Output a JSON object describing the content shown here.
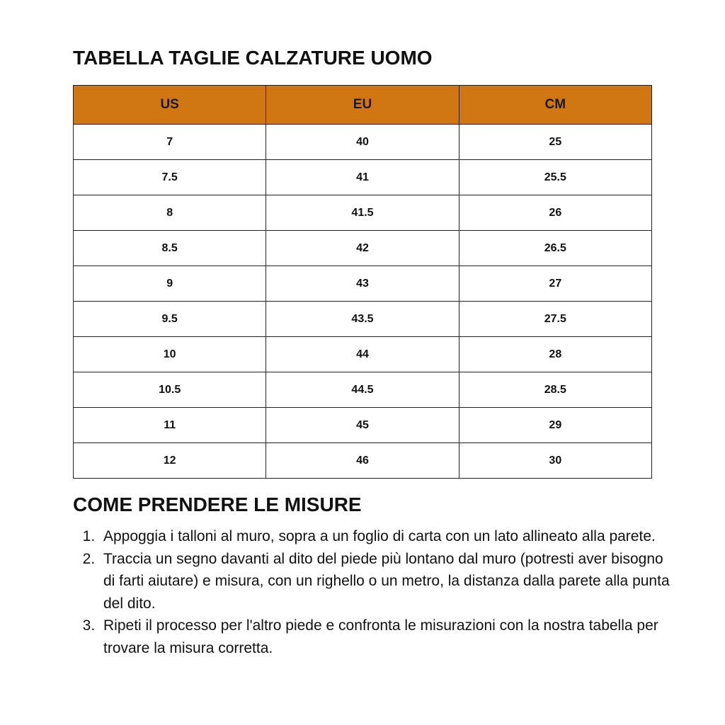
{
  "title": "TABELLA TAGLIE CALZATURE UOMO",
  "accent_color": "#D07612",
  "table": {
    "headers": [
      "US",
      "EU",
      "CM"
    ],
    "rows": [
      [
        "7",
        "40",
        "25"
      ],
      [
        "7.5",
        "41",
        "25.5"
      ],
      [
        "8",
        "41.5",
        "26"
      ],
      [
        "8.5",
        "42",
        "26.5"
      ],
      [
        "9",
        "43",
        "27"
      ],
      [
        "9.5",
        "43.5",
        "27.5"
      ],
      [
        "10",
        "44",
        "28"
      ],
      [
        "10.5",
        "44.5",
        "28.5"
      ],
      [
        "11",
        "45",
        "29"
      ],
      [
        "12",
        "46",
        "30"
      ]
    ]
  },
  "instructions": {
    "title": "COME PRENDERE LE MISURE",
    "steps": [
      "Appoggia i talloni al muro, sopra a un foglio di carta con un lato allineato alla parete.",
      "Traccia un segno davanti al dito del piede più lontano dal muro (potresti aver bisogno di farti aiutare) e misura, con un righello o un metro, la distanza dalla parete alla punta del dito.",
      "Ripeti il processo per l'altro piede e confronta le misurazioni con la nostra tabella per trovare la misura corretta."
    ]
  }
}
